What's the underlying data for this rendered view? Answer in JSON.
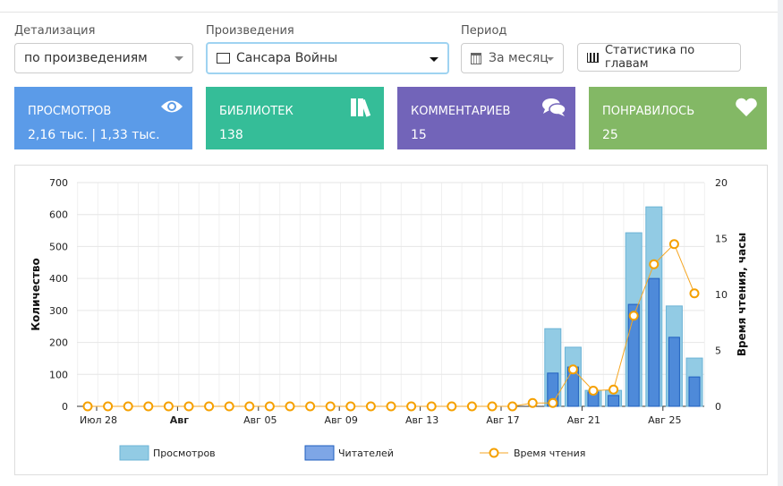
{
  "filters": {
    "detail_label": "Детализация",
    "detail_value": "по произведениям",
    "works_label": "Произведения",
    "works_value": "Сансара Войны",
    "period_label": "Период",
    "period_value": "За месяц",
    "chapters_button": "Статистика по главам"
  },
  "cards": [
    {
      "title": "ПРОСМОТРОВ",
      "value": "2,16 тыс. | 1,33 тыс.",
      "color": "#5b9be8",
      "icon": "eye-icon"
    },
    {
      "title": "БИБЛИОТЕК",
      "value": "138",
      "color": "#35bd98",
      "icon": "books-icon"
    },
    {
      "title": "КОММЕНТАРИЕВ",
      "value": "15",
      "color": "#7264b9",
      "icon": "comments-icon"
    },
    {
      "title": "ПОНРАВИЛОСЬ",
      "value": "25",
      "color": "#83b865",
      "icon": "heart-icon"
    }
  ],
  "chart_data": {
    "type": "bar",
    "days": 31,
    "x_tick_labels": [
      {
        "i": 0,
        "label": "Июл 28"
      },
      {
        "i": 4,
        "label": "Авг",
        "bold": true
      },
      {
        "i": 8,
        "label": "Авг 05"
      },
      {
        "i": 12,
        "label": "Авг 09"
      },
      {
        "i": 16,
        "label": "Авг 13"
      },
      {
        "i": 20,
        "label": "Авг 17"
      },
      {
        "i": 24,
        "label": "Авг 21"
      },
      {
        "i": 28,
        "label": "Авг 25"
      }
    ],
    "ylabel": "Количество",
    "y2label": "Время чтения, часы",
    "ylim": [
      0,
      700
    ],
    "yticks": [
      0,
      100,
      200,
      300,
      400,
      500,
      600,
      700
    ],
    "y2lim": [
      0,
      20
    ],
    "y2ticks": [
      0,
      5,
      10,
      15,
      20
    ],
    "series": [
      {
        "name": "Просмотров",
        "type": "bar",
        "color": "#92cbe4",
        "values": [
          0,
          0,
          0,
          0,
          0,
          0,
          0,
          0,
          0,
          0,
          0,
          0,
          0,
          0,
          0,
          0,
          0,
          0,
          0,
          0,
          0,
          0,
          0,
          243,
          185,
          50,
          50,
          543,
          624,
          314,
          151
        ]
      },
      {
        "name": "Читателей",
        "type": "bar",
        "color": "#4e8ad9",
        "values": [
          0,
          0,
          0,
          0,
          0,
          0,
          0,
          0,
          0,
          0,
          0,
          0,
          0,
          0,
          0,
          0,
          0,
          0,
          0,
          0,
          0,
          0,
          0,
          104,
          123,
          45,
          34,
          319,
          400,
          216,
          92
        ]
      },
      {
        "name": "Время чтения",
        "type": "line",
        "axis": "right",
        "color": "#f5a623",
        "values": [
          0,
          0,
          0,
          0,
          0,
          0,
          0,
          0,
          0,
          0,
          0,
          0,
          0,
          0,
          0,
          0,
          0,
          0,
          0,
          0,
          0,
          0,
          0.3,
          0.3,
          3.3,
          1.4,
          1.5,
          8.1,
          12.7,
          14.5,
          10.1
        ]
      }
    ]
  }
}
